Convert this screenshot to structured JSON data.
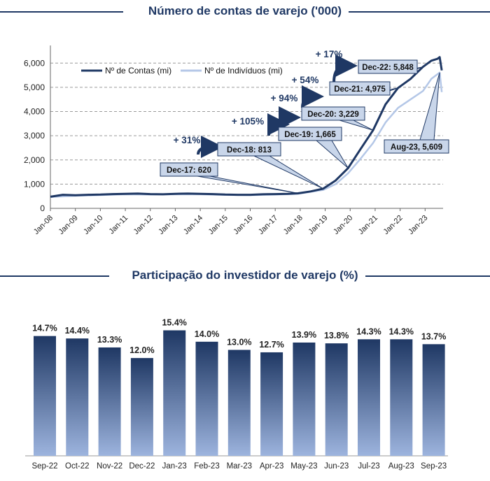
{
  "chart_data": [
    {
      "type": "line",
      "title": "Número de contas de varejo ('000)",
      "xlabel": "",
      "ylabel": "",
      "ylim": [
        0,
        6500
      ],
      "yticks": [
        0,
        1000,
        2000,
        3000,
        4000,
        5000,
        6000
      ],
      "ytick_labels": [
        "0",
        "1,000",
        "2,000",
        "3,000",
        "4,000",
        "5,000",
        "6,000"
      ],
      "xtick_labels": [
        "Jan-08",
        "Jan-09",
        "Jan-10",
        "Jan-11",
        "Jan-12",
        "Jan-13",
        "Jan-14",
        "Jan-15",
        "Jan-16",
        "Jan-17",
        "Jan-18",
        "Jan-19",
        "Jan-20",
        "Jan-21",
        "Jan-22",
        "Jan-23"
      ],
      "grid": "horizontal dashed",
      "legend_position": "top-left",
      "series": [
        {
          "name": "Nº de Contas (mi)",
          "color": "#1f3864",
          "points": [
            [
              "2008-01",
              480
            ],
            [
              "2008-07",
              560
            ],
            [
              "2009-01",
              540
            ],
            [
              "2009-07",
              560
            ],
            [
              "2010-01",
              570
            ],
            [
              "2010-07",
              590
            ],
            [
              "2011-01",
              600
            ],
            [
              "2011-07",
              610
            ],
            [
              "2012-01",
              590
            ],
            [
              "2012-07",
              580
            ],
            [
              "2013-01",
              600
            ],
            [
              "2013-07",
              610
            ],
            [
              "2014-01",
              600
            ],
            [
              "2014-07",
              590
            ],
            [
              "2015-01",
              570
            ],
            [
              "2015-07",
              560
            ],
            [
              "2016-01",
              560
            ],
            [
              "2016-07",
              580
            ],
            [
              "2017-01",
              590
            ],
            [
              "2017-07",
              600
            ],
            [
              "2017-12",
              620
            ],
            [
              "2018-06",
              700
            ],
            [
              "2018-12",
              813
            ],
            [
              "2019-06",
              1150
            ],
            [
              "2019-12",
              1665
            ],
            [
              "2020-06",
              2450
            ],
            [
              "2020-12",
              3229
            ],
            [
              "2021-06",
              4300
            ],
            [
              "2021-12",
              4975
            ],
            [
              "2022-06",
              5350
            ],
            [
              "2022-12",
              5848
            ],
            [
              "2023-04",
              6100
            ],
            [
              "2023-07",
              6180
            ],
            [
              "2023-08",
              6250
            ],
            [
              "2023-09",
              5700
            ]
          ]
        },
        {
          "name": "Nº de Indivíduos (mi)",
          "color": "#b4c7e7",
          "points": [
            [
              "2008-01",
              470
            ],
            [
              "2009-01",
              520
            ],
            [
              "2010-01",
              550
            ],
            [
              "2011-01",
              580
            ],
            [
              "2012-01",
              570
            ],
            [
              "2013-01",
              580
            ],
            [
              "2014-01",
              580
            ],
            [
              "2015-01",
              555
            ],
            [
              "2016-01",
              545
            ],
            [
              "2017-01",
              570
            ],
            [
              "2017-12",
              600
            ],
            [
              "2018-12",
              760
            ],
            [
              "2019-06",
              1000
            ],
            [
              "2019-12",
              1450
            ],
            [
              "2020-06",
              2050
            ],
            [
              "2020-12",
              2700
            ],
            [
              "2021-06",
              3550
            ],
            [
              "2021-12",
              4150
            ],
            [
              "2022-06",
              4500
            ],
            [
              "2022-12",
              4850
            ],
            [
              "2023-04",
              5350
            ],
            [
              "2023-08",
              5609
            ],
            [
              "2023-09",
              4800
            ]
          ]
        }
      ],
      "callouts": [
        {
          "label": "Dec-17: 620"
        },
        {
          "label": "Dec-18: 813"
        },
        {
          "label": "Dec-19: 1,665"
        },
        {
          "label": "Dec-20: 3,229"
        },
        {
          "label": "Dec-21: 4,975"
        },
        {
          "label": "Dec-22: 5,848"
        },
        {
          "label": "Aug-23, 5,609"
        }
      ],
      "growth_labels": [
        "+ 31%",
        "+ 105%",
        "+ 94%",
        "+ 54%",
        "+ 17%"
      ]
    },
    {
      "type": "bar",
      "title": "Participação do investidor de varejo (%)",
      "xlabel": "",
      "ylabel": "",
      "ylim": [
        0,
        17.5
      ],
      "categories": [
        "Sep-22",
        "Oct-22",
        "Nov-22",
        "Dec-22",
        "Jan-23",
        "Feb-23",
        "Mar-23",
        "Apr-23",
        "May-23",
        "Jun-23",
        "Jul-23",
        "Aug-23",
        "Sep-23"
      ],
      "values": [
        14.7,
        14.4,
        13.3,
        12.0,
        15.4,
        14.0,
        13.0,
        12.7,
        13.9,
        13.8,
        14.3,
        14.3,
        13.7
      ],
      "value_labels": [
        "14.7%",
        "14.4%",
        "13.3%",
        "12.0%",
        "15.4%",
        "14.0%",
        "13.0%",
        "12.7%",
        "13.9%",
        "13.8%",
        "14.3%",
        "14.3%",
        "13.7%"
      ],
      "gradient": [
        "#1f3864",
        "#9db4de"
      ]
    }
  ]
}
